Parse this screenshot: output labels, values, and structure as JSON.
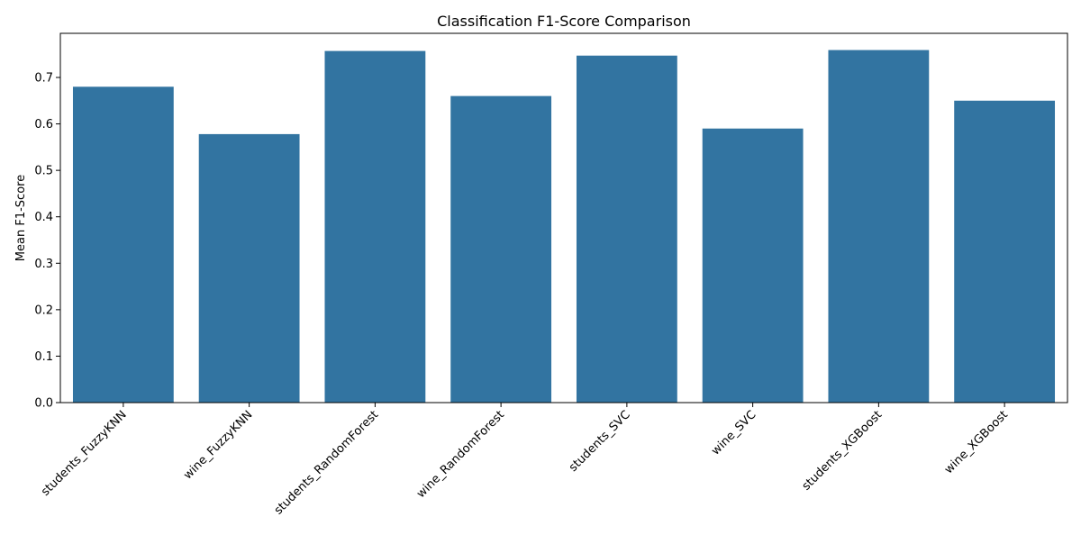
{
  "chart_data": {
    "type": "bar",
    "title": "Classification F1-Score Comparison",
    "xlabel": "",
    "ylabel": "Mean F1-Score",
    "categories": [
      "students_FuzzyKNN",
      "wine_FuzzyKNN",
      "students_RandomForest",
      "wine_RandomForest",
      "students_SVC",
      "wine_SVC",
      "students_XGBoost",
      "wine_XGBoost"
    ],
    "values": [
      0.68,
      0.578,
      0.757,
      0.66,
      0.747,
      0.59,
      0.759,
      0.65
    ],
    "ylim": [
      0,
      0.795
    ],
    "yticks": [
      0.0,
      0.1,
      0.2,
      0.3,
      0.4,
      0.5,
      0.6,
      0.7
    ],
    "ytick_labels": [
      "0.0",
      "0.1",
      "0.2",
      "0.3",
      "0.4",
      "0.5",
      "0.6",
      "0.7"
    ],
    "bar_color": "#3274a1",
    "grid": false,
    "legend": "none"
  }
}
